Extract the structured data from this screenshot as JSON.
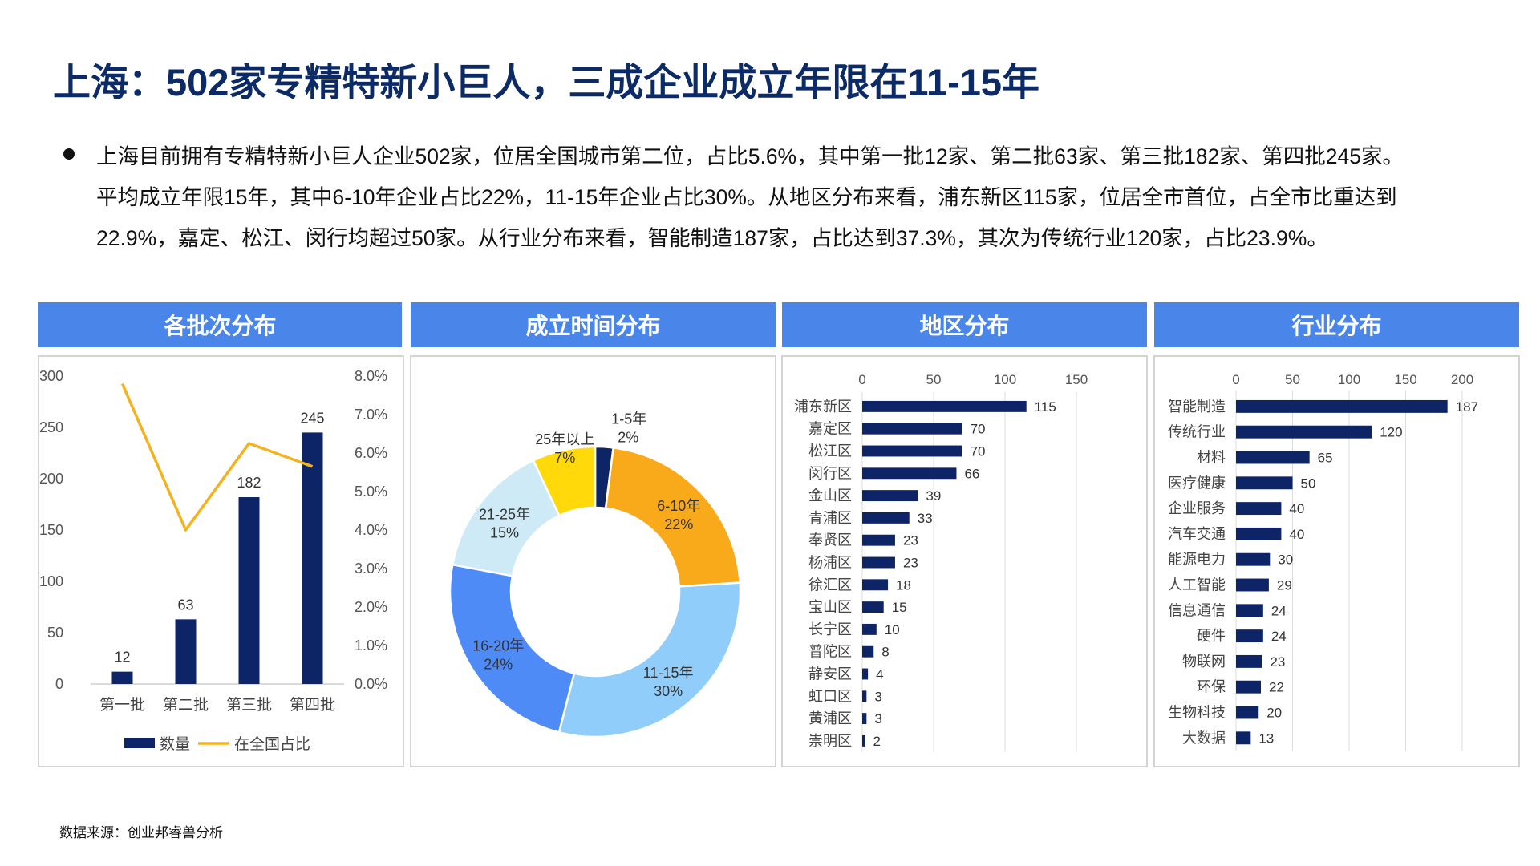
{
  "page": {
    "title": "上海：502家专精特新小巨人，三成企业成立年限在11-15年",
    "paragraph_lines": [
      "上海目前拥有专精特新小巨人企业502家，位居全国城市第二位，占比5.6%，其中第一批12家、第二批63家、第三批182家、第四批245家。",
      "平均成立年限15年，其中6-10年企业占比22%，11-15年企业占比30%。从地区分布来看，浦东新区115家，位居全市首位，占全市比重达到",
      "22.9%，嘉定、松江、闵行均超过50家。从行业分布来看，智能制造187家，占比达到37.3%，其次为传统行业120家，占比23.9%。"
    ],
    "source": "数据来源：创业邦睿兽分析"
  },
  "panels": {
    "batch": "各批次分布",
    "age": "成立时间分布",
    "region": "地区分布",
    "industry": "行业分布"
  },
  "chart_data": [
    {
      "type": "bar",
      "title": "各批次分布",
      "categories": [
        "第一批",
        "第二批",
        "第三批",
        "第四批"
      ],
      "series": [
        {
          "name": "数量",
          "type": "bar",
          "axis": "left",
          "values": [
            12,
            63,
            182,
            245
          ],
          "color": "#0d2566"
        },
        {
          "name": "在全国占比",
          "type": "line",
          "axis": "right",
          "values": [
            7.8,
            4.0,
            6.25,
            5.65
          ],
          "color": "#f5b21f"
        }
      ],
      "ylim": [
        0,
        300
      ],
      "yticks": [
        "0",
        "50",
        "100",
        "150",
        "200",
        "250",
        "300"
      ],
      "y2lim": [
        0,
        8
      ],
      "y2ticks": [
        "0.0%",
        "1.0%",
        "2.0%",
        "3.0%",
        "4.0%",
        "5.0%",
        "6.0%",
        "7.0%",
        "8.0%"
      ],
      "legend": "bottom",
      "grid": false
    },
    {
      "type": "pie",
      "title": "成立时间分布",
      "donut": true,
      "slices": [
        {
          "label": "1-5年",
          "pct": "2%",
          "value": 2,
          "color": "#0d2566"
        },
        {
          "label": "6-10年",
          "pct": "22%",
          "value": 22,
          "color": "#f9aa1b"
        },
        {
          "label": "11-15年",
          "pct": "30%",
          "value": 30,
          "color": "#91cdfb"
        },
        {
          "label": "16-20年",
          "pct": "24%",
          "value": 24,
          "color": "#4f8bf7"
        },
        {
          "label": "21-25年",
          "pct": "15%",
          "value": 15,
          "color": "#cdeaf6"
        },
        {
          "label": "25年以上",
          "pct": "7%",
          "value": 7,
          "color": "#ffd90a"
        }
      ]
    },
    {
      "type": "bar",
      "orientation": "horizontal",
      "title": "地区分布",
      "categories": [
        "浦东新区",
        "嘉定区",
        "松江区",
        "闵行区",
        "金山区",
        "青浦区",
        "奉贤区",
        "杨浦区",
        "徐汇区",
        "宝山区",
        "长宁区",
        "普陀区",
        "静安区",
        "虹口区",
        "黄浦区",
        "崇明区"
      ],
      "values": [
        115,
        70,
        70,
        66,
        39,
        33,
        23,
        23,
        18,
        15,
        10,
        8,
        4,
        3,
        3,
        2
      ],
      "xlim": [
        0,
        150
      ],
      "xticks": [
        "0",
        "50",
        "100",
        "150"
      ],
      "color": "#0d2566",
      "grid": true
    },
    {
      "type": "bar",
      "orientation": "horizontal",
      "title": "行业分布",
      "categories": [
        "智能制造",
        "传统行业",
        "材料",
        "医疗健康",
        "企业服务",
        "汽车交通",
        "能源电力",
        "人工智能",
        "信息通信",
        "硬件",
        "物联网",
        "环保",
        "生物科技",
        "大数据"
      ],
      "values": [
        187,
        120,
        65,
        50,
        40,
        40,
        30,
        29,
        24,
        24,
        23,
        22,
        20,
        13
      ],
      "xlim": [
        0,
        200
      ],
      "xticks": [
        "0",
        "50",
        "100",
        "150",
        "200"
      ],
      "color": "#0d2566",
      "grid": true
    }
  ]
}
